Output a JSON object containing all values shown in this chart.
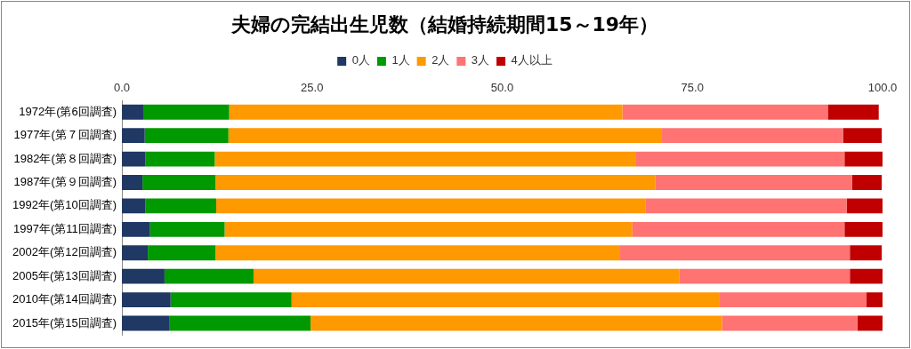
{
  "chart_data": {
    "type": "bar",
    "orientation": "horizontal",
    "stacked": true,
    "title": "夫婦の完結出生児数（結婚持続期間15～19年）",
    "categories": [
      "1972年(第6回調査)",
      "1977年(第７回調査)",
      "1982年(第８回調査)",
      "1987年(第９回調査)",
      "1992年(第10回調査)",
      "1997年(第11回調査)",
      "2002年(第12回調査)",
      "2005年(第13回調査)",
      "2010年(第14回調査)",
      "2015年(第15回調査)"
    ],
    "series": [
      {
        "name": "0人",
        "color": "#1f3864",
        "values": [
          2.8,
          3.0,
          3.1,
          2.7,
          3.1,
          3.7,
          3.4,
          5.6,
          6.4,
          6.2
        ]
      },
      {
        "name": "1人",
        "color": "#009900",
        "values": [
          11.3,
          11.0,
          9.1,
          9.6,
          9.3,
          9.8,
          8.9,
          11.7,
          15.9,
          18.6
        ]
      },
      {
        "name": "2人",
        "color": "#ff9900",
        "values": [
          51.7,
          57.0,
          55.4,
          57.8,
          56.4,
          53.6,
          53.2,
          56.0,
          56.2,
          54.1
        ]
      },
      {
        "name": "3人",
        "color": "#ff7373",
        "values": [
          27.0,
          23.8,
          27.4,
          25.9,
          26.5,
          27.9,
          30.2,
          22.4,
          19.4,
          17.8
        ]
      },
      {
        "name": "4人以上",
        "color": "#c00000",
        "values": [
          6.7,
          5.1,
          5.0,
          3.9,
          4.7,
          5.0,
          4.2,
          4.3,
          2.2,
          3.3
        ]
      }
    ],
    "xlim": [
      0,
      100
    ],
    "xticks": [
      {
        "value": 0,
        "label": "0.0"
      },
      {
        "value": 25,
        "label": "25.0"
      },
      {
        "value": 50,
        "label": "50.0"
      },
      {
        "value": 75,
        "label": "75.0"
      },
      {
        "value": 100,
        "label": "100.0"
      }
    ],
    "grid": false,
    "legend": "top"
  }
}
